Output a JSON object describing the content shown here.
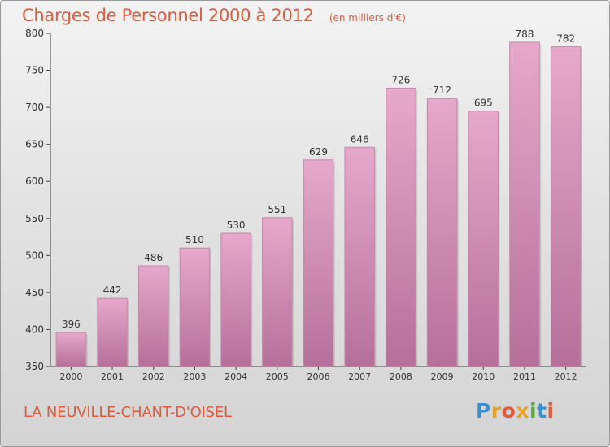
{
  "chart_data": {
    "type": "bar",
    "title": "Charges de Personnel 2000 à 2012",
    "subtitle": "(en milliers d'€)",
    "categories": [
      "2000",
      "2001",
      "2002",
      "2003",
      "2004",
      "2005",
      "2006",
      "2007",
      "2008",
      "2009",
      "2010",
      "2011",
      "2012"
    ],
    "values": [
      396,
      442,
      486,
      510,
      530,
      551,
      629,
      646,
      726,
      712,
      695,
      788,
      782
    ],
    "ylim": [
      350,
      800
    ],
    "yticks": [
      350,
      400,
      450,
      500,
      550,
      600,
      650,
      700,
      750,
      800
    ],
    "xlabel": "",
    "ylabel": "",
    "grid": false,
    "bar_color": "#d890b8"
  },
  "footer": {
    "commune": "LA NEUVILLE-CHANT-D'OISEL",
    "logo_letters": [
      "P",
      "r",
      "o",
      "x",
      "i",
      "t",
      "i"
    ],
    "logo_colors": [
      "#3a8fd0",
      "#e8a020",
      "#e05a3c",
      "#e8a020",
      "#5aaa3c",
      "#3a8fd0",
      "#e05a3c"
    ]
  },
  "colors": {
    "title": "#e05a3c",
    "axis": "#444444"
  }
}
